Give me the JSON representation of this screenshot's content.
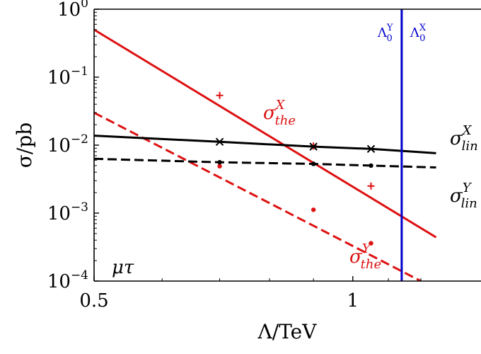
{
  "chart_data": {
    "type": "line",
    "xlabel": "Λ/TeV",
    "ylabel": "σ/pb",
    "xscale": "log",
    "yscale": "log",
    "xlim": [
      0.5,
      1.25
    ],
    "ylim": [
      0.0001,
      1
    ],
    "x_ticks": [
      {
        "value": 0.5,
        "label": "0.5"
      },
      {
        "value": 1,
        "label": "1"
      }
    ],
    "y_ticks": [
      {
        "value": 1,
        "base": "10",
        "exp": "0"
      },
      {
        "value": 0.1,
        "base": "10",
        "exp": "−1"
      },
      {
        "value": 0.01,
        "base": "10",
        "exp": "−2"
      },
      {
        "value": 0.001,
        "base": "10",
        "exp": "−3"
      },
      {
        "value": 0.0001,
        "base": "10",
        "exp": "−4"
      }
    ],
    "annotation": "μτ",
    "series": [
      {
        "label_main": "σ",
        "label_sub": "the",
        "label_sup": "X",
        "color": "#dd1111",
        "dash": "solid",
        "marker": "plus",
        "line": [
          [
            0.5,
            0.5
          ],
          [
            1.25,
            0.00044
          ]
        ],
        "markers": [
          [
            0.7,
            0.054
          ],
          [
            0.9,
            0.0097
          ],
          [
            1.05,
            0.0025
          ]
        ]
      },
      {
        "label_main": "σ",
        "label_sub": "the",
        "label_sup": "Y",
        "color": "#dd1111",
        "dash": "dashed",
        "marker": "dot",
        "line": [
          [
            0.5,
            0.03
          ],
          [
            1.2,
            0.0001
          ]
        ],
        "markers": [
          [
            0.7,
            0.0049
          ],
          [
            0.9,
            0.00112
          ],
          [
            1.05,
            0.00036
          ]
        ]
      },
      {
        "label_main": "σ",
        "label_sub": "lin",
        "label_sup": "X",
        "color": "#000000",
        "dash": "solid",
        "marker": "x",
        "line": [
          [
            0.5,
            0.0138
          ],
          [
            0.7,
            0.0112
          ],
          [
            0.9,
            0.0095
          ],
          [
            1.05,
            0.0088
          ],
          [
            1.25,
            0.0076
          ]
        ],
        "markers": [
          [
            0.7,
            0.0112
          ],
          [
            0.9,
            0.0095
          ],
          [
            1.05,
            0.0088
          ]
        ]
      },
      {
        "label_main": "σ",
        "label_sub": "lin",
        "label_sup": "Y",
        "color": "#000000",
        "dash": "dashed",
        "marker": "dot",
        "line": [
          [
            0.5,
            0.0063
          ],
          [
            0.7,
            0.0056
          ],
          [
            0.9,
            0.0053
          ],
          [
            1.05,
            0.005
          ],
          [
            1.25,
            0.0047
          ]
        ],
        "markers": [
          [
            0.7,
            0.0056
          ],
          [
            0.9,
            0.0053
          ],
          [
            1.05,
            0.005
          ]
        ]
      }
    ],
    "vline": {
      "x": 1.14,
      "color": "#0000cc",
      "left_label": {
        "main": "Λ",
        "sub": "0",
        "sup": "Y"
      },
      "right_label": {
        "main": "Λ",
        "sub": "0",
        "sup": "X"
      }
    }
  }
}
